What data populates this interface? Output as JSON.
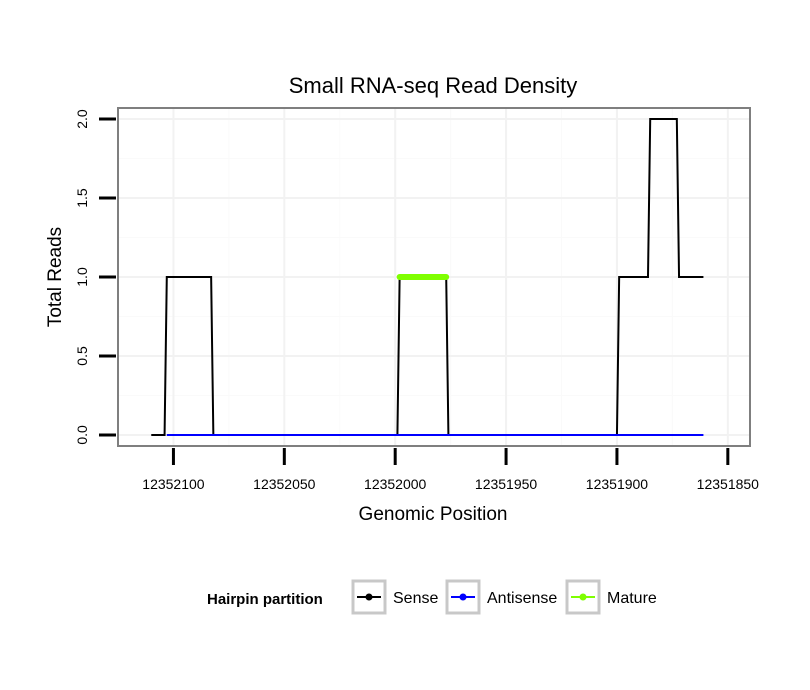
{
  "chart_data": {
    "type": "line",
    "title": "Small RNA-seq Read Density",
    "xlabel": "Genomic Position",
    "ylabel": "Total Reads",
    "x_reversed": true,
    "xlim": [
      12352125,
      12351840
    ],
    "ylim": [
      -0.07,
      2.07
    ],
    "x_ticks": [
      12352100,
      12352050,
      12352000,
      12351950,
      12351900,
      12351850
    ],
    "x_tick_labels": [
      "12352100",
      "12352050",
      "12352000",
      "12351950",
      "12351900",
      "12351850"
    ],
    "y_ticks": [
      0,
      0.5,
      1,
      1.5,
      2
    ],
    "y_tick_labels": [
      "0.0",
      "0.5",
      "1.0",
      "1.5",
      "2.0"
    ],
    "grid": true,
    "legend_position": "bottom",
    "legend_title": "Hairpin partition",
    "series": [
      {
        "name": "Sense",
        "color": "#000000",
        "x": [
          12352110,
          12352104,
          12352103,
          12352083,
          12352082,
          12351999,
          12351998,
          12351977,
          12351976,
          12351900,
          12351899,
          12351886,
          12351885,
          12351873,
          12351872,
          12351861
        ],
        "y": [
          0,
          0,
          1,
          1,
          0,
          0,
          1,
          1,
          0,
          0,
          1,
          1,
          2,
          2,
          1,
          1
        ]
      },
      {
        "name": "Antisense",
        "color": "#0000ff",
        "x": [
          12352103,
          12351861
        ],
        "y": [
          0,
          0
        ]
      },
      {
        "name": "Mature",
        "color": "#7fff00",
        "x": [
          12351998,
          12351977
        ],
        "y": [
          1,
          1
        ]
      }
    ]
  }
}
